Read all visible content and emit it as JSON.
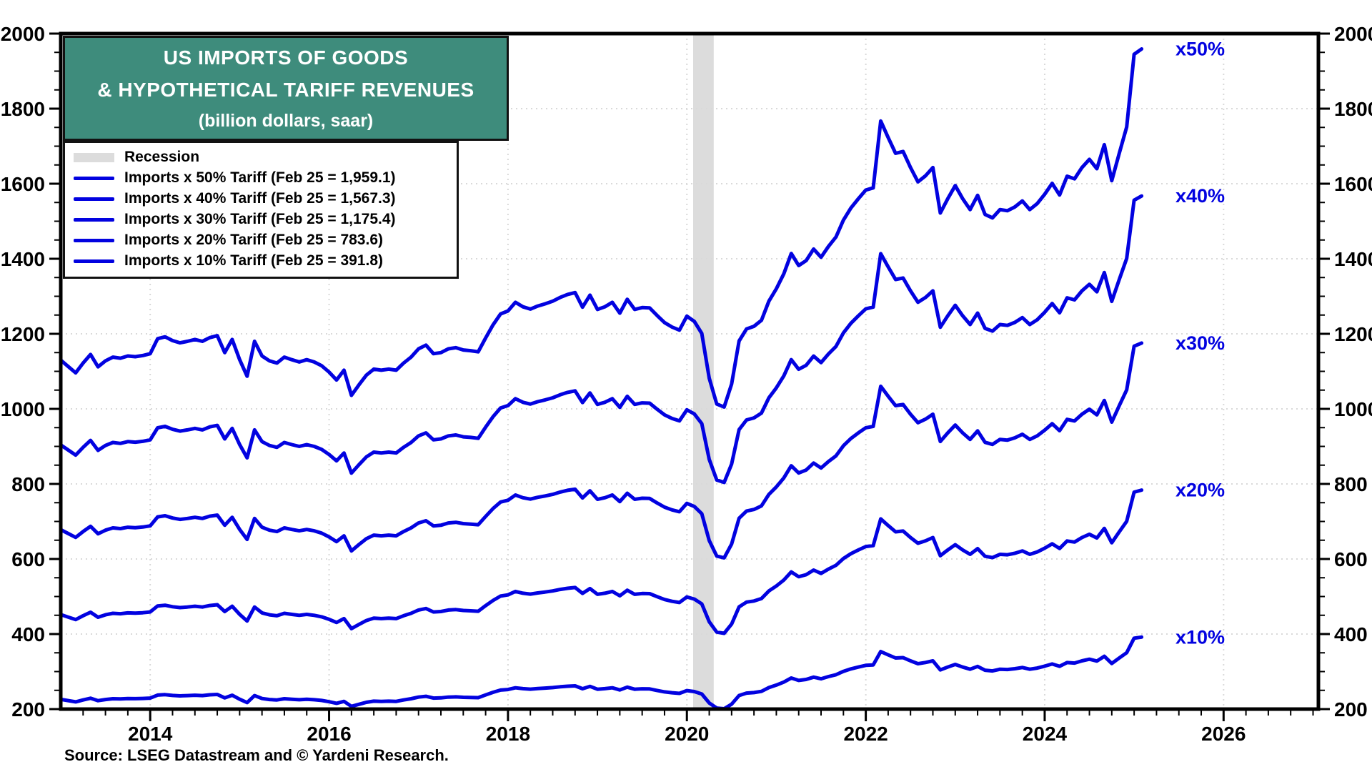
{
  "title": {
    "line1": "US IMPORTS OF GOODS",
    "line2": "& HYPOTHETICAL TARIFF REVENUES",
    "line3": "(billion dollars, saar)"
  },
  "legend": {
    "recession_label": "Recession",
    "series_labels": [
      "Imports x 50% Tariff (Feb 25 = 1,959.1)",
      "Imports x 40% Tariff (Feb 25 = 1,567.3)",
      "Imports x 30% Tariff (Feb 25 = 1,175.4)",
      "Imports x 20% Tariff (Feb 25 = 783.6)",
      "Imports x 10% Tariff (Feb 25 = 391.8)"
    ]
  },
  "source": "Source: LSEG Datastream and © Yardeni Research.",
  "colors": {
    "line": "#0202E0",
    "label_blue": "#0202E0",
    "title_bg": "#3E8C7C",
    "recession": "#DCDCDC",
    "grid": "#D9D9D9",
    "axis": "#000000"
  },
  "chart_data": {
    "type": "line",
    "title": "US IMPORTS OF GOODS & HYPOTHETICAL TARIFF REVENUES (billion dollars, saar)",
    "grid": "dotted",
    "legend_position": "top-left",
    "x_axis": {
      "range": [
        2013,
        2027.06
      ],
      "major_tick_years": [
        2014,
        2016,
        2018,
        2020,
        2022,
        2024,
        2026
      ],
      "tick_labels": [
        "2014",
        "2016",
        "2018",
        "2020",
        "2022",
        "2024",
        "2026"
      ],
      "gridline_years": [
        2014,
        2016,
        2018,
        2020,
        2022,
        2024,
        2026
      ],
      "minor_tick_interval_years": 0.25
    },
    "y_axis": {
      "range": [
        200,
        2000
      ],
      "tick_values": [
        200,
        400,
        600,
        800,
        1000,
        1200,
        1400,
        1600,
        1800,
        2000
      ],
      "tick_labels": [
        "200",
        "400",
        "600",
        "800",
        "1000",
        "1200",
        "1400",
        "1600",
        "1800",
        "2000"
      ],
      "gridline_values": [
        400,
        600,
        800,
        1000,
        1200,
        1400,
        1600,
        1800
      ],
      "minor_tick_interval": 50,
      "labels_both_sides": true
    },
    "recession_bands": [
      {
        "start": 2020.07,
        "end": 2020.3
      }
    ],
    "monthly_x_start": {
      "year": 2013,
      "month": 1
    },
    "monthly_x_end": {
      "year": 2025,
      "month": 2
    },
    "base_series_note": "values are the 'Imports x 50% Tariff' line read off the chart ($bn, saar); other lines are proportional",
    "base_values_x50": [
      1130,
      1113,
      1096,
      1122,
      1145,
      1112,
      1128,
      1138,
      1135,
      1141,
      1139,
      1142,
      1147,
      1187,
      1192,
      1182,
      1176,
      1180,
      1185,
      1180,
      1190,
      1195,
      1150,
      1185,
      1131,
      1087,
      1180,
      1141,
      1128,
      1122,
      1138,
      1131,
      1125,
      1131,
      1125,
      1115,
      1098,
      1077,
      1103,
      1036,
      1064,
      1090,
      1106,
      1103,
      1106,
      1103,
      1122,
      1138,
      1160,
      1170,
      1147,
      1150,
      1160,
      1163,
      1157,
      1155,
      1152,
      1189,
      1224,
      1253,
      1261,
      1284,
      1272,
      1266,
      1274,
      1280,
      1287,
      1297,
      1305,
      1310,
      1271,
      1303,
      1265,
      1272,
      1284,
      1255,
      1292,
      1265,
      1270,
      1269,
      1249,
      1230,
      1218,
      1210,
      1247,
      1233,
      1201,
      1082,
      1013,
      1005,
      1066,
      1181,
      1213,
      1220,
      1236,
      1287,
      1320,
      1360,
      1414,
      1382,
      1395,
      1426,
      1404,
      1433,
      1458,
      1503,
      1535,
      1560,
      1583,
      1589,
      1767,
      1723,
      1681,
      1686,
      1643,
      1605,
      1621,
      1643,
      1522,
      1560,
      1595,
      1560,
      1531,
      1569,
      1518,
      1509,
      1531,
      1528,
      1538,
      1554,
      1531,
      1547,
      1572,
      1601,
      1570,
      1620,
      1613,
      1643,
      1665,
      1640,
      1704,
      1608,
      1681,
      1751,
      1945,
      1959.1
    ],
    "series": [
      {
        "name": "Imports x 50% Tariff",
        "scale_vs_x50": 1.0,
        "feb_25_value": 1959.1,
        "end_label": "x50%"
      },
      {
        "name": "Imports x 40% Tariff",
        "scale_vs_x50": 0.8,
        "feb_25_value": 1567.3,
        "end_label": "x40%"
      },
      {
        "name": "Imports x 30% Tariff",
        "scale_vs_x50": 0.6,
        "feb_25_value": 1175.4,
        "end_label": "x30%"
      },
      {
        "name": "Imports x 20% Tariff",
        "scale_vs_x50": 0.4,
        "feb_25_value": 783.6,
        "end_label": "x20%"
      },
      {
        "name": "Imports x 10% Tariff",
        "scale_vs_x50": 0.2,
        "feb_25_value": 391.8,
        "end_label": "x10%"
      }
    ]
  }
}
